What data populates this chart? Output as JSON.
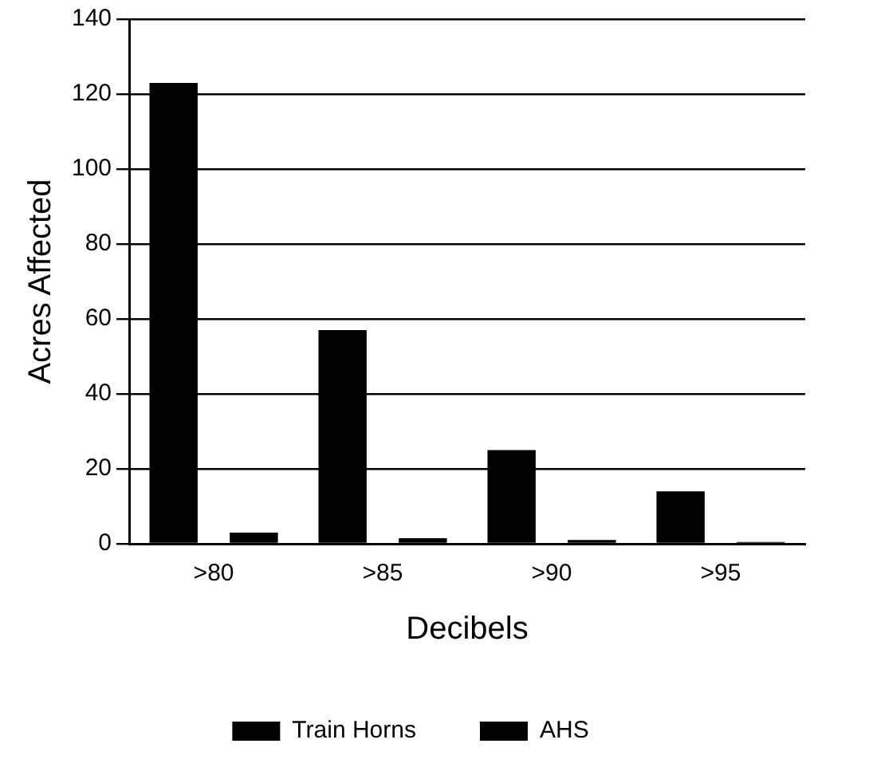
{
  "chart_data": {
    "type": "bar",
    "xlabel": "Decibels",
    "ylabel": "Acres Affected",
    "categories": [
      ">80",
      ">85",
      ">90",
      ">95"
    ],
    "series": [
      {
        "name": "Train Horns",
        "color": "#000000",
        "values": [
          123,
          57,
          25,
          14
        ]
      },
      {
        "name": "AHS",
        "color": "#000000",
        "values": [
          3,
          1.5,
          1,
          0.5
        ]
      }
    ],
    "ylim": [
      0,
      140
    ],
    "yticks": [
      0,
      20,
      40,
      60,
      80,
      100,
      120,
      140
    ],
    "grid": "y",
    "legend": "bottom"
  }
}
